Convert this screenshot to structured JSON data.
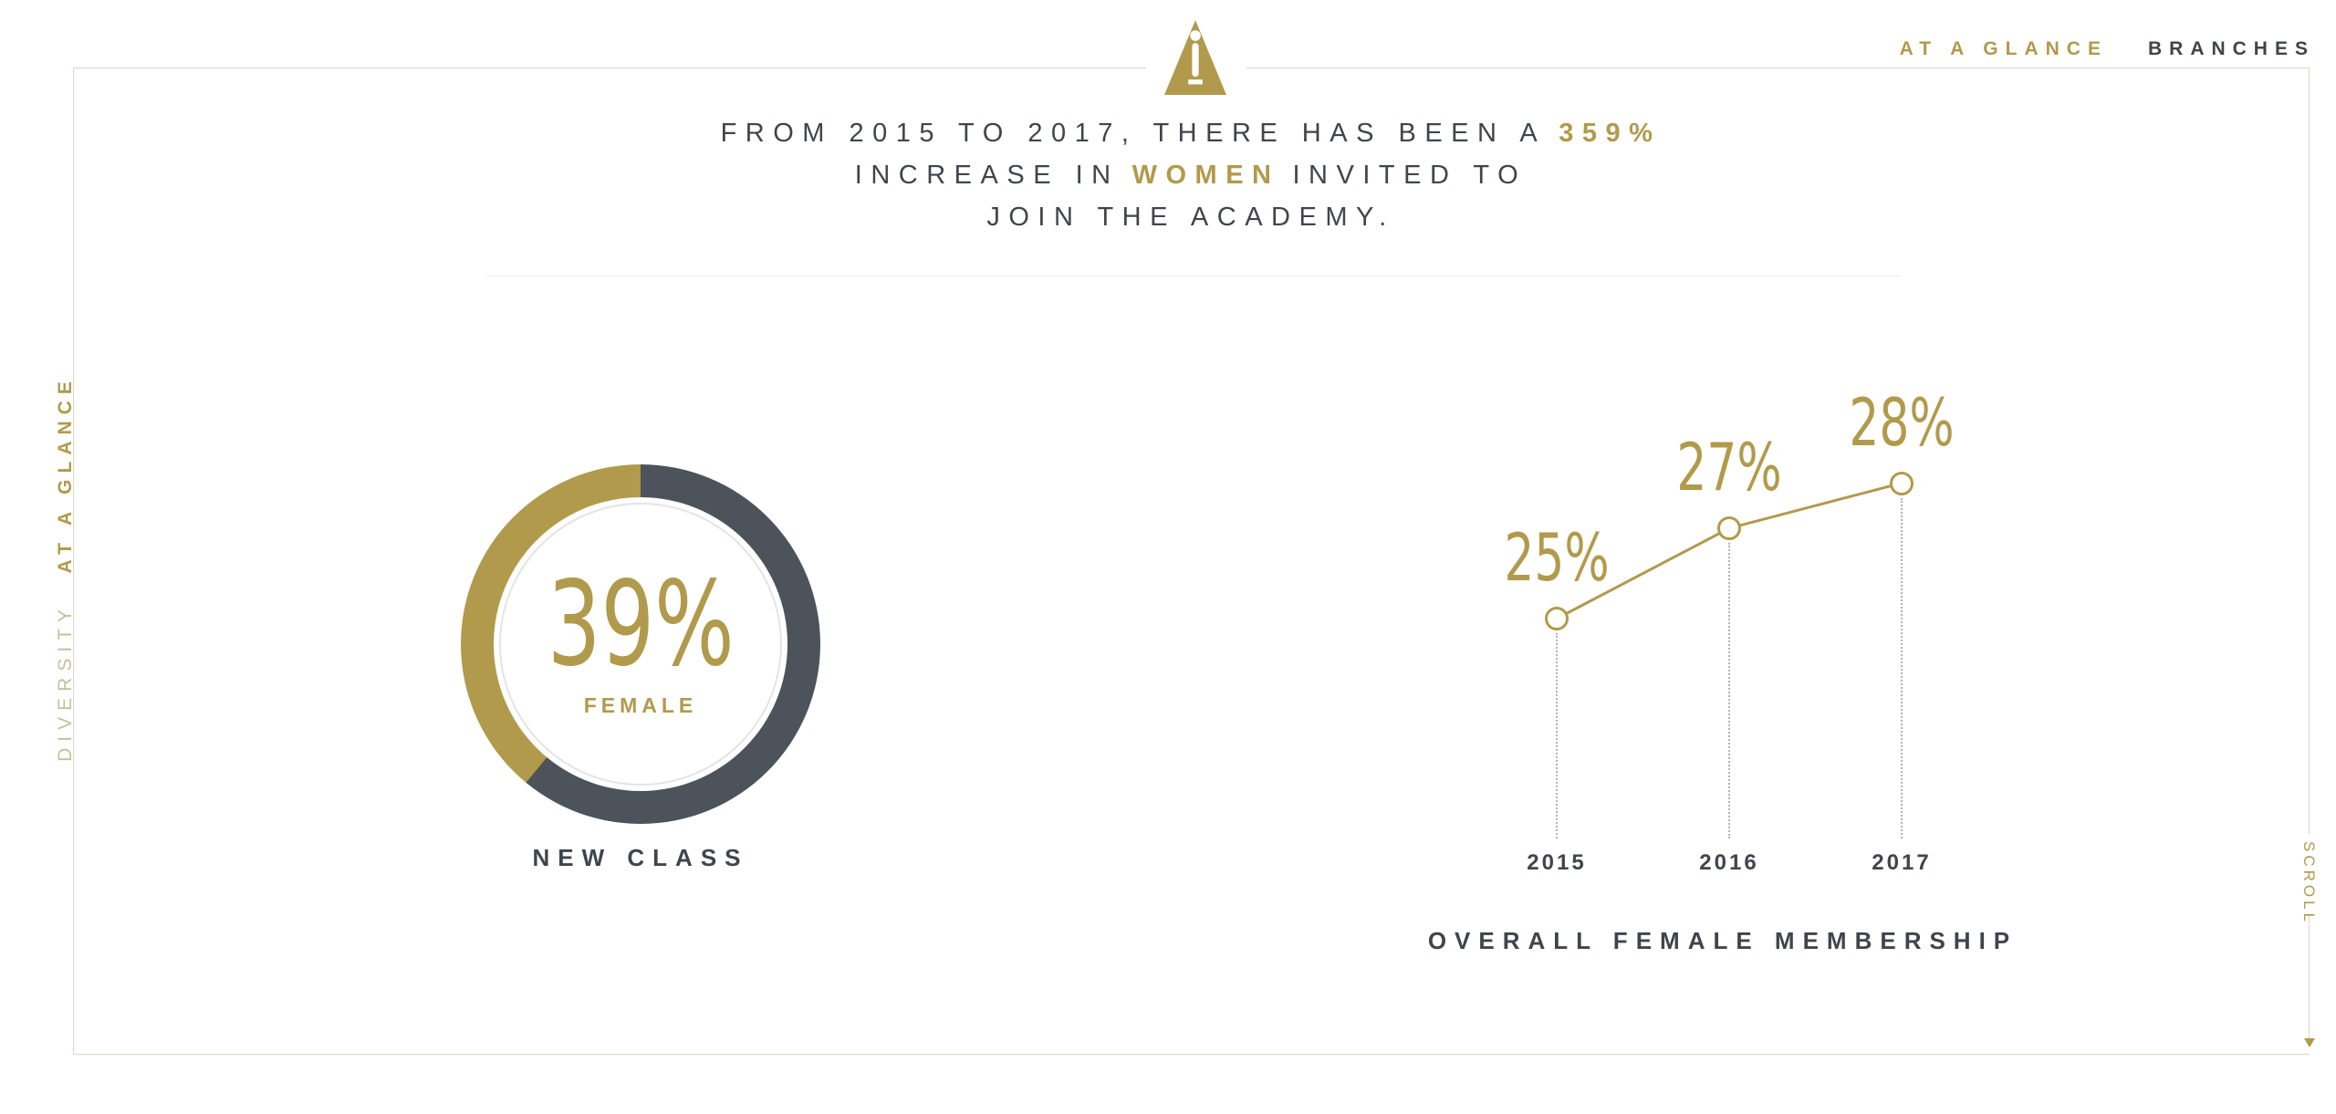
{
  "colors": {
    "gold": "#b19a4b",
    "gold_muted": "#c9be9b",
    "slate": "#4d535a",
    "text_dark": "#3f454c",
    "frame": "#ddd6c4",
    "dotted_line": "#b3b3b3"
  },
  "nav": {
    "items": [
      {
        "label": "AT A GLANCE"
      },
      {
        "label": "BRANCHES"
      }
    ]
  },
  "logo": {
    "name": "academy-statuette"
  },
  "headline": {
    "l1a": "FROM 2015 TO 2017, THERE HAS BEEN A",
    "l1b": "359%",
    "l2a": "INCREASE IN",
    "l2b": "WOMEN",
    "l2c": "INVITED TO",
    "l3": "JOIN THE ACADEMY."
  },
  "side_label": {
    "prefix": "DIVERSITY",
    "suffix": "AT A GLANCE"
  },
  "scroll": {
    "label": "SCROLL"
  },
  "chart_data": [
    {
      "type": "pie",
      "subtype": "donut",
      "title": "NEW CLASS",
      "center_value": "39%",
      "center_label": "FEMALE",
      "slices": [
        {
          "label": "Female",
          "value": 39,
          "color": "#b19a4b"
        },
        {
          "label": "Other",
          "value": 61,
          "color": "#4d535a"
        }
      ]
    },
    {
      "type": "line",
      "title": "OVERALL FEMALE MEMBERSHIP",
      "categories": [
        "2015",
        "2016",
        "2017"
      ],
      "values": [
        25,
        27,
        28
      ],
      "value_labels": [
        "25%",
        "27%",
        "28%"
      ],
      "xlabel": "",
      "ylabel": "",
      "ylim": [
        20,
        30
      ],
      "marker": "open-circle",
      "drop_lines": "dotted",
      "legend": "none",
      "grid": false
    }
  ]
}
